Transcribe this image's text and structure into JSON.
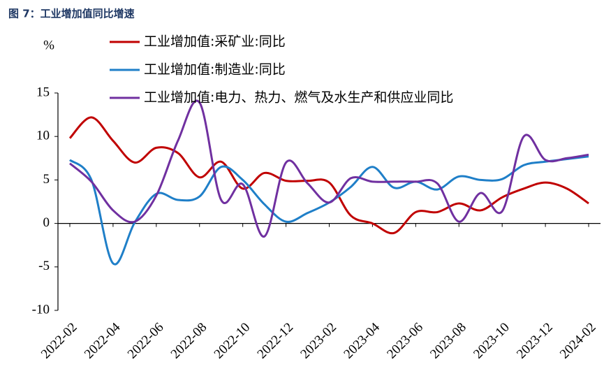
{
  "chart_data": {
    "type": "line",
    "title": "图 7：工业增加值同比增速",
    "y_label": "%",
    "categories": [
      "2022-02",
      null,
      "2022-04",
      null,
      "2022-06",
      null,
      "2022-08",
      null,
      "2022-10",
      null,
      "2022-12",
      null,
      "2023-02",
      null,
      "2023-04",
      null,
      "2023-06",
      null,
      "2023-08",
      null,
      "2023-10",
      null,
      "2023-12",
      null,
      "2024-02"
    ],
    "series": [
      {
        "name": "工业增加值:采矿业:同比",
        "color": "#c00000",
        "values": [
          9.8,
          12.2,
          9.5,
          7.0,
          8.7,
          8.1,
          5.3,
          7.1,
          4.0,
          5.8,
          4.9,
          4.9,
          4.7,
          0.9,
          0.0,
          -1.1,
          1.3,
          1.3,
          2.3,
          1.5,
          3.0,
          4.0,
          4.7,
          4.0,
          2.3
        ]
      },
      {
        "name": "工业增加值:制造业:同比",
        "color": "#1f7fc8",
        "values": [
          7.3,
          5.0,
          -4.6,
          0.1,
          3.4,
          2.7,
          3.1,
          6.5,
          5.0,
          2.2,
          0.2,
          1.2,
          2.4,
          4.2,
          6.5,
          4.1,
          4.8,
          3.9,
          5.4,
          5.0,
          5.1,
          6.7,
          7.1,
          7.4,
          7.7
        ]
      },
      {
        "name": "工业增加值:电力、热力、燃气及水生产和供应业同比",
        "color": "#7030a0",
        "values": [
          6.9,
          4.8,
          1.5,
          0.2,
          3.2,
          9.5,
          13.9,
          2.7,
          4.5,
          -1.5,
          7.0,
          4.6,
          2.4,
          5.2,
          4.8,
          4.8,
          4.8,
          4.6,
          0.2,
          3.5,
          1.4,
          10.0,
          7.3,
          7.5,
          7.9
        ]
      }
    ],
    "ylim": [
      -10,
      15
    ],
    "yticks": [
      15,
      10,
      5,
      0,
      -5,
      -10
    ]
  }
}
